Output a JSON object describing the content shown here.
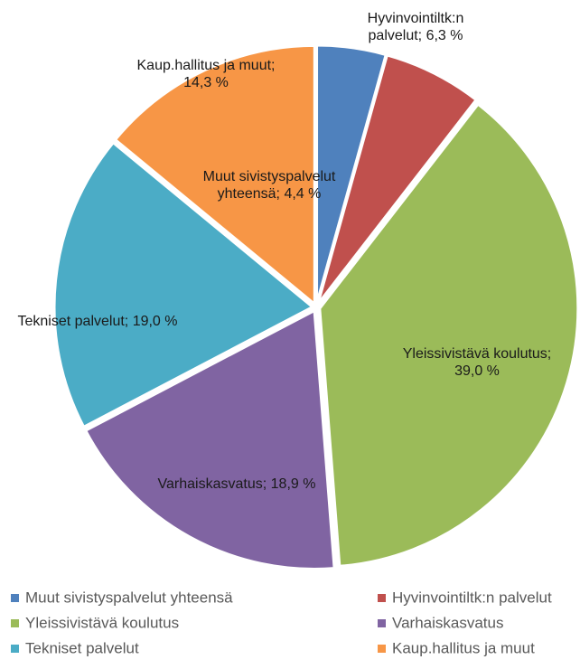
{
  "chart_data": {
    "type": "pie",
    "categories": [
      "Muut sivistyspalvelut yhteensä",
      "Hyvinvointiltk:n palvelut",
      "Yleissivistävä koulutus",
      "Varhaiskasvatus",
      "Tekniset palvelut",
      "Kaup.hallitus ja muut"
    ],
    "label_names": [
      "Muut sivistyspalvelut yhteensä;",
      "Hyvinvointiltk:n palvelut;",
      "Yleissivistävä koulutus;",
      "Varhaiskasvatus;",
      "Tekniset palvelut;",
      "Kaup.hallitus ja muut;"
    ],
    "values": [
      4.4,
      6.3,
      39.0,
      18.9,
      19.0,
      14.3
    ],
    "value_labels": [
      "4,4 %",
      "6,3 %",
      "39,0 %",
      "18,9 %",
      "19,0 %",
      "14,3 %"
    ],
    "colors": [
      "#4f81bd",
      "#c0504d",
      "#9bbb59",
      "#8064a2",
      "#4bacc6",
      "#f79646"
    ],
    "legend": "bottom"
  }
}
